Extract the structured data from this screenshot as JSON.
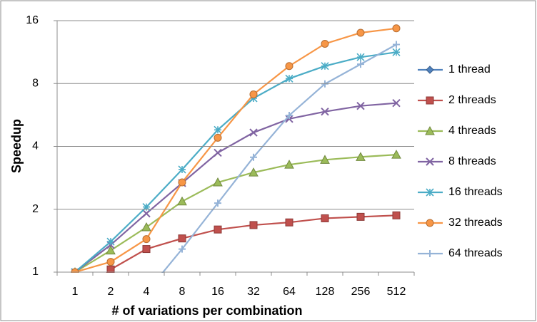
{
  "chart_data": {
    "type": "line",
    "x_label": "# of variations per combination",
    "y_label": "Speedup",
    "categories": [
      "1",
      "2",
      "4",
      "8",
      "16",
      "32",
      "64",
      "128",
      "256",
      "512"
    ],
    "ylim": [
      1,
      16
    ],
    "yticks": [
      1,
      2,
      4,
      8,
      16
    ],
    "log_scale": true,
    "grid": true,
    "legend": "right",
    "series": [
      {
        "name": "1 thread",
        "color": "#4f81bd",
        "marker": "diamond",
        "values": [
          1.0,
          null,
          null,
          null,
          null,
          null,
          null,
          null,
          null,
          null
        ]
      },
      {
        "name": "2 threads",
        "color": "#c0504d",
        "marker": "square",
        "values": [
          0.7,
          1.03,
          1.29,
          1.45,
          1.6,
          1.68,
          1.73,
          1.81,
          1.84,
          1.87
        ]
      },
      {
        "name": "4 threads",
        "color": "#9bbb59",
        "marker": "triangle",
        "values": [
          1.0,
          1.27,
          1.64,
          2.18,
          2.69,
          3.0,
          3.27,
          3.45,
          3.56,
          3.65
        ]
      },
      {
        "name": "8 threads",
        "color": "#8064a2",
        "marker": "x",
        "values": [
          1.0,
          1.35,
          1.91,
          2.67,
          3.73,
          4.66,
          5.42,
          5.87,
          6.25,
          6.45
        ]
      },
      {
        "name": "16 threads",
        "color": "#4bacc6",
        "marker": "star",
        "values": [
          1.0,
          1.4,
          2.05,
          3.1,
          4.8,
          6.8,
          8.45,
          9.7,
          10.7,
          11.3
        ]
      },
      {
        "name": "32 threads",
        "color": "#f79646",
        "marker": "circle",
        "values": [
          1.0,
          1.12,
          1.44,
          2.69,
          4.4,
          7.1,
          9.7,
          12.4,
          14.0,
          14.7
        ]
      },
      {
        "name": "64 threads",
        "color": "#95b3d7",
        "marker": "plus",
        "values": [
          null,
          null,
          0.8,
          1.29,
          2.14,
          3.55,
          5.63,
          7.97,
          9.9,
          12.3
        ]
      }
    ]
  }
}
